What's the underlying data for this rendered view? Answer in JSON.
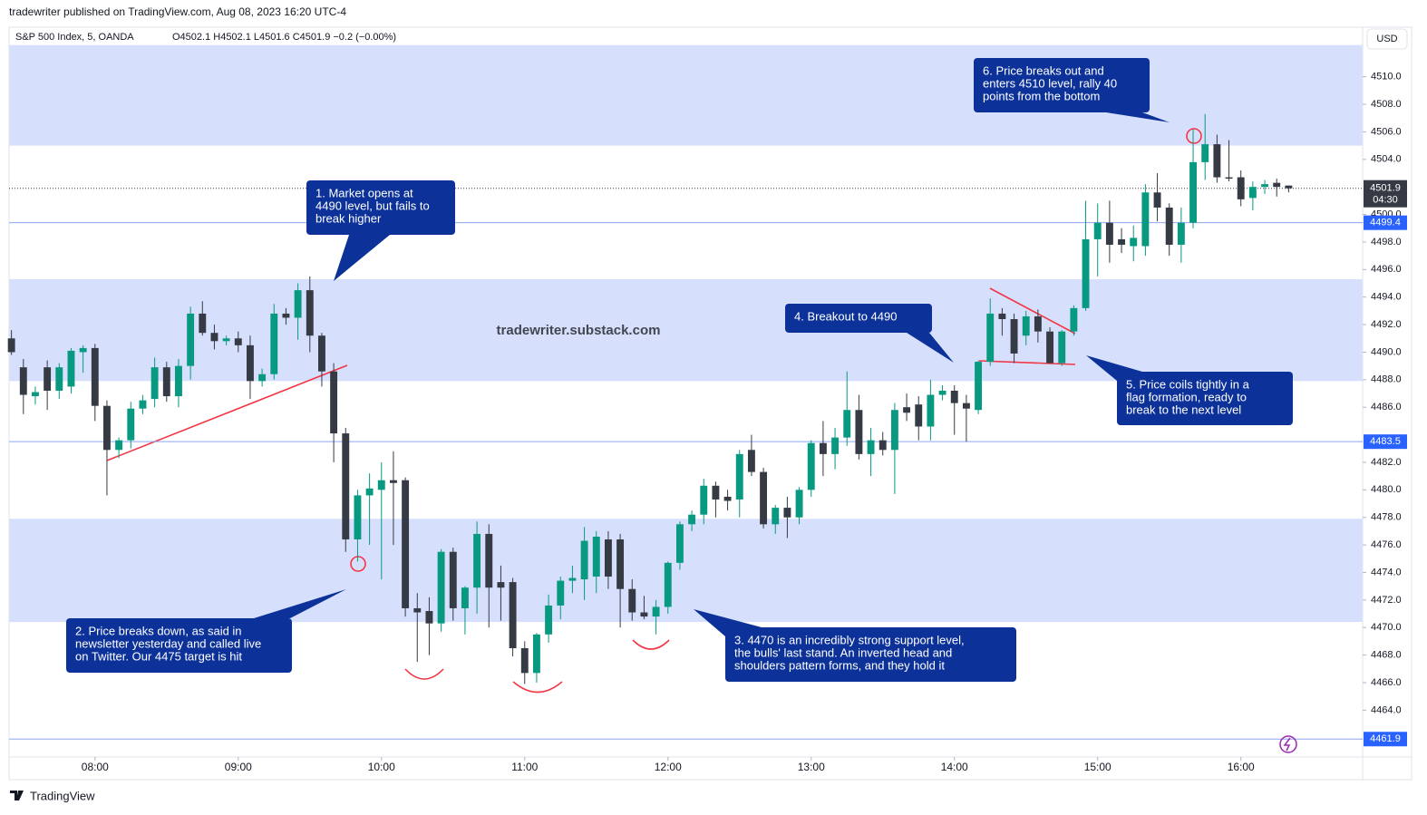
{
  "header": {
    "publisher": "tradewriter published on TradingView.com, Aug 08, 2023 16:20 UTC-4"
  },
  "footer": {
    "brand": "TradingView"
  },
  "chart_data": {
    "type": "candlestick",
    "title": "S&P 500 Index, 5, OANDA",
    "ohlc_label": "O4502.1  H4502.1  L4501.6  C4501.9  −0.2 (−0.00%)",
    "currency": "USD",
    "watermark": "tradewriter.substack.com",
    "up_color": "#089981",
    "down_color": "#363a45",
    "x": [
      445,
      450,
      455,
      460,
      465,
      470,
      475,
      480,
      485,
      490,
      495,
      500,
      505,
      510,
      515,
      520,
      525,
      530,
      535,
      540,
      545,
      550,
      555,
      560,
      565,
      570,
      575,
      580,
      585,
      590,
      595,
      600,
      605,
      610,
      615,
      620,
      625,
      630,
      635,
      640,
      645,
      650,
      655,
      660,
      665,
      670,
      675,
      680,
      685,
      690,
      695,
      700,
      705,
      710,
      715,
      720,
      725,
      730,
      735,
      740,
      745,
      750,
      755,
      760,
      765,
      770,
      775,
      780,
      785,
      790,
      795,
      800,
      805,
      810,
      815,
      820,
      825,
      830,
      835,
      840,
      845,
      850,
      855,
      860,
      865,
      870,
      875,
      880,
      885,
      890,
      895,
      900,
      905,
      910,
      915,
      920,
      925,
      930,
      935,
      940,
      945,
      950,
      955,
      960,
      965,
      970,
      975,
      980
    ],
    "open": [
      4491.0,
      4488.9,
      4486.8,
      4488.9,
      4487.2,
      4487.5,
      4490.0,
      4490.3,
      4486.1,
      4482.9,
      4483.6,
      4485.9,
      4486.6,
      4488.9,
      4486.8,
      4489.0,
      4492.8,
      4491.4,
      4490.8,
      4491.0,
      4490.5,
      4487.9,
      4488.4,
      4492.8,
      4492.5,
      4494.5,
      4491.2,
      4488.6,
      4484.1,
      4476.4,
      4479.6,
      4480.0,
      4480.7,
      4480.7,
      4471.4,
      4471.2,
      4470.3,
      4475.5,
      4471.4,
      4472.9,
      4476.8,
      4473.3,
      4473.3,
      4468.5,
      4466.7,
      4469.5,
      4471.6,
      4473.4,
      4473.5,
      4473.7,
      4476.4,
      4476.4,
      4472.8,
      4471.1,
      4470.8,
      4471.5,
      4474.7,
      4477.5,
      4478.2,
      4480.3,
      4479.5,
      4479.3,
      4482.9,
      4481.3,
      4477.5,
      4478.7,
      4478.0,
      4480.0,
      4483.4,
      4482.6,
      4483.8,
      4485.8,
      4482.6,
      4483.6,
      4482.9,
      4486.0,
      4486.2,
      4484.6,
      4486.9,
      4487.2,
      4486.3,
      4485.8,
      4489.3,
      4492.8,
      4492.4,
      4491.2,
      4492.6,
      4491.5,
      4489.2,
      4491.5,
      4493.2,
      4498.2,
      4499.4,
      4498.2,
      4497.7,
      4497.7,
      4501.6,
      4500.5,
      4497.8,
      4499.4,
      4503.8,
      4505.1,
      4502.7,
      4502.7,
      4501.2,
      4502.0,
      4502.3,
      4502.1
    ],
    "high": [
      4491.6,
      4489.5,
      4487.5,
      4489.4,
      4489.2,
      4490.3,
      4490.5,
      4490.6,
      4486.5,
      4483.8,
      4486.4,
      4486.9,
      4489.6,
      4489.3,
      4489.5,
      4493.3,
      4493.7,
      4492.0,
      4491.2,
      4491.5,
      4491.2,
      4488.8,
      4493.5,
      4493.2,
      4495.0,
      4495.5,
      4491.4,
      4489.2,
      4484.5,
      4480.0,
      4481.2,
      4482.0,
      4482.8,
      4480.9,
      4472.5,
      4472.2,
      4475.7,
      4475.8,
      4473.0,
      4477.7,
      4477.5,
      4474.5,
      4473.6,
      4469.0,
      4469.6,
      4472.4,
      4473.7,
      4474.5,
      4477.3,
      4477.0,
      4477.0,
      4476.8,
      4473.5,
      4472.3,
      4472.0,
      4474.8,
      4477.7,
      4478.5,
      4480.8,
      4480.6,
      4480.0,
      4482.9,
      4484.0,
      4481.6,
      4478.9,
      4479.5,
      4480.2,
      4483.6,
      4485.0,
      4484.5,
      4488.6,
      4486.9,
      4484.5,
      4484.2,
      4486.3,
      4487.0,
      4486.8,
      4488.0,
      4487.6,
      4487.6,
      4486.9,
      4489.4,
      4493.9,
      4493.2,
      4492.8,
      4493.0,
      4493.1,
      4491.8,
      4491.6,
      4493.4,
      4501.0,
      4500.8,
      4501.0,
      4499.0,
      4499.2,
      4502.2,
      4503.0,
      4500.8,
      4500.5,
      4506.2,
      4507.3,
      4505.8,
      4505.4,
      4503.2,
      4502.4,
      4502.5,
      4502.6,
      4502.1
    ],
    "low": [
      4489.8,
      4485.5,
      4486.2,
      4485.8,
      4486.6,
      4487.0,
      4488.5,
      4485.0,
      4479.6,
      4482.3,
      4483.0,
      4485.5,
      4486.0,
      4486.4,
      4486.0,
      4488.0,
      4491.2,
      4490.2,
      4490.5,
      4490.0,
      4486.6,
      4487.5,
      4488.0,
      4492.0,
      4490.9,
      4490.0,
      4487.5,
      4482.0,
      4475.5,
      4474.8,
      4476.0,
      4473.5,
      4476.0,
      4470.8,
      4467.5,
      4468.0,
      4469.7,
      4470.5,
      4469.5,
      4471.0,
      4470.0,
      4470.5,
      4467.9,
      4465.9,
      4466.0,
      4468.9,
      4470.6,
      4472.5,
      4472.0,
      4472.5,
      4472.8,
      4470.0,
      4470.5,
      4470.6,
      4469.5,
      4471.0,
      4474.2,
      4477.0,
      4477.5,
      4478.0,
      4478.5,
      4478.0,
      4481.0,
      4477.2,
      4476.8,
      4476.5,
      4477.5,
      4479.5,
      4481.0,
      4481.5,
      4483.2,
      4482.2,
      4481.0,
      4482.5,
      4479.7,
      4485.0,
      4483.6,
      4483.6,
      4486.5,
      4484.0,
      4483.5,
      4485.5,
      4489.0,
      4491.2,
      4489.2,
      4490.5,
      4490.7,
      4489.2,
      4489.0,
      4491.2,
      4493.0,
      4495.5,
      4496.5,
      4497.2,
      4496.6,
      4497.0,
      4499.5,
      4497.0,
      4496.5,
      4499.0,
      4502.5,
      4502.3,
      4502.4,
      4500.6,
      4500.3,
      4501.5,
      4501.3,
      4501.6
    ],
    "close": [
      4490.0,
      4486.9,
      4487.1,
      4487.2,
      4488.9,
      4490.1,
      4490.3,
      4486.1,
      4482.9,
      4483.6,
      4485.9,
      4486.5,
      4488.9,
      4486.8,
      4489.0,
      4492.8,
      4491.4,
      4490.8,
      4491.0,
      4490.5,
      4487.9,
      4488.4,
      4492.8,
      4492.5,
      4494.5,
      4491.2,
      4488.6,
      4484.1,
      4476.4,
      4479.6,
      4480.1,
      4480.7,
      4480.5,
      4471.4,
      4471.1,
      4470.3,
      4475.5,
      4471.4,
      4472.9,
      4476.8,
      4472.9,
      4472.9,
      4468.5,
      4466.7,
      4469.5,
      4471.6,
      4473.4,
      4473.6,
      4476.3,
      4476.6,
      4473.7,
      4472.8,
      4471.1,
      4470.8,
      4471.5,
      4474.7,
      4477.5,
      4478.2,
      4480.3,
      4479.3,
      4479.2,
      4482.6,
      4481.3,
      4477.5,
      4478.7,
      4478.0,
      4480.0,
      4483.4,
      4482.6,
      4483.8,
      4485.8,
      4482.6,
      4483.6,
      4482.9,
      4485.8,
      4485.6,
      4484.6,
      4486.9,
      4487.2,
      4486.3,
      4485.9,
      4489.3,
      4492.8,
      4492.4,
      4489.9,
      4492.6,
      4491.5,
      4489.2,
      4491.5,
      4493.2,
      4498.2,
      4499.4,
      4497.8,
      4497.8,
      4498.3,
      4501.6,
      4500.5,
      4497.8,
      4499.4,
      4503.8,
      4505.1,
      4502.7,
      4502.6,
      4501.1,
      4502.0,
      4502.2,
      4502.0,
      4501.9
    ],
    "xlim": [
      444,
      1011
    ],
    "xticks": [
      {
        "value": 480,
        "label": "08:00"
      },
      {
        "value": 540,
        "label": "09:00"
      },
      {
        "value": 600,
        "label": "10:00"
      },
      {
        "value": 660,
        "label": "11:00"
      },
      {
        "value": 720,
        "label": "12:00"
      },
      {
        "value": 780,
        "label": "13:00"
      },
      {
        "value": 840,
        "label": "14:00"
      },
      {
        "value": 900,
        "label": "15:00"
      },
      {
        "value": 960,
        "label": "16:00"
      }
    ],
    "ylim": [
      4460.6,
      4513.6
    ],
    "yticks": [
      {
        "value": 4464,
        "label": "4464.0"
      },
      {
        "value": 4466,
        "label": "4466.0"
      },
      {
        "value": 4468,
        "label": "4468.0"
      },
      {
        "value": 4470,
        "label": "4470.0"
      },
      {
        "value": 4472,
        "label": "4472.0"
      },
      {
        "value": 4474,
        "label": "4474.0"
      },
      {
        "value": 4476,
        "label": "4476.0"
      },
      {
        "value": 4478,
        "label": "4478.0"
      },
      {
        "value": 4480,
        "label": "4480.0"
      },
      {
        "value": 4482,
        "label": "4482.0"
      },
      {
        "value": 4486,
        "label": "4486.0"
      },
      {
        "value": 4488,
        "label": "4488.0"
      },
      {
        "value": 4490,
        "label": "4490.0"
      },
      {
        "value": 4492,
        "label": "4492.0"
      },
      {
        "value": 4494,
        "label": "4494.0"
      },
      {
        "value": 4496,
        "label": "4496.0"
      },
      {
        "value": 4498,
        "label": "4498.0"
      },
      {
        "value": 4500,
        "label": "4500.0"
      },
      {
        "value": 4504,
        "label": "4504.0"
      },
      {
        "value": 4506,
        "label": "4506.0"
      },
      {
        "value": 4508,
        "label": "4508.0"
      },
      {
        "value": 4510,
        "label": "4510.0"
      }
    ],
    "zones": [
      [
        4505.0,
        4512.3
      ],
      [
        4487.9,
        4495.3
      ],
      [
        4470.4,
        4477.9
      ]
    ],
    "levels": [
      4499.4,
      4483.5,
      4461.9
    ],
    "last_price": 4501.9,
    "countdown": "04:30",
    "annotations": [
      {
        "lines": [
          "1. Market opens at",
          "4490 level, but fails to",
          "break higher"
        ]
      },
      {
        "lines": [
          "2. Price breaks down, as said in",
          "newsletter yesterday and called live",
          "on Twitter. Our 4475 target is hit"
        ]
      },
      {
        "lines": [
          "3. 4470 is an incredibly strong support level,",
          "the bulls' last stand. An inverted head and",
          "shoulders pattern forms, and they hold it"
        ]
      },
      {
        "lines": [
          "4. Breakout to 4490"
        ]
      },
      {
        "lines": [
          "5. Price coils tightly in a",
          "flag formation, ready to",
          "break to the next level"
        ]
      },
      {
        "lines": [
          "6. Price breaks out and",
          "enters 4510 level, rally 40",
          "points from the bottom"
        ]
      }
    ]
  }
}
